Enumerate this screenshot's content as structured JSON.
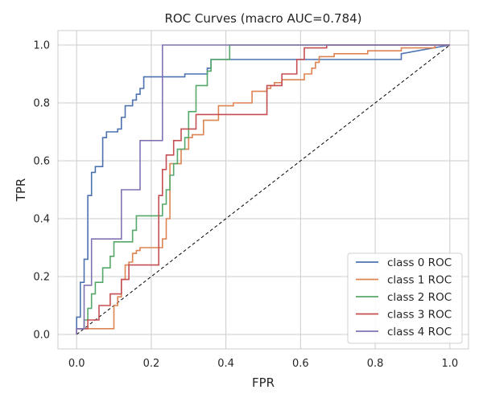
{
  "chart_data": {
    "type": "line",
    "title": "ROC Curves (macro AUC=0.784)",
    "xlabel": "FPR",
    "ylabel": "TPR",
    "xlim": [
      -0.05,
      1.05
    ],
    "ylim": [
      -0.05,
      1.05
    ],
    "xticks": [
      0.0,
      0.2,
      0.4,
      0.6,
      0.8,
      1.0
    ],
    "yticks": [
      0.0,
      0.2,
      0.4,
      0.6,
      0.8,
      1.0
    ],
    "xtick_labels": [
      "0.0",
      "0.2",
      "0.4",
      "0.6",
      "0.8",
      "1.0"
    ],
    "ytick_labels": [
      "0.0",
      "0.2",
      "0.4",
      "0.6",
      "0.8",
      "1.0"
    ],
    "grid": true,
    "legend_position": "bottom-right",
    "diagonal": {
      "x": [
        0,
        1
      ],
      "y": [
        0,
        1
      ],
      "color": "#000000",
      "style": "dashed"
    },
    "series": [
      {
        "name": "class 0 ROC",
        "color": "#4C72B0",
        "x": [
          0.0,
          0.0,
          0.01,
          0.01,
          0.02,
          0.02,
          0.03,
          0.03,
          0.04,
          0.04,
          0.05,
          0.05,
          0.07,
          0.07,
          0.08,
          0.08,
          0.11,
          0.11,
          0.12,
          0.12,
          0.13,
          0.13,
          0.15,
          0.15,
          0.16,
          0.16,
          0.17,
          0.17,
          0.18,
          0.18,
          0.29,
          0.29,
          0.35,
          0.35,
          0.36,
          0.36,
          0.87,
          0.87,
          1.0
        ],
        "y": [
          0.0,
          0.06,
          0.06,
          0.18,
          0.18,
          0.26,
          0.26,
          0.48,
          0.48,
          0.56,
          0.56,
          0.58,
          0.58,
          0.68,
          0.68,
          0.7,
          0.7,
          0.71,
          0.71,
          0.75,
          0.75,
          0.79,
          0.79,
          0.81,
          0.81,
          0.83,
          0.83,
          0.85,
          0.85,
          0.89,
          0.89,
          0.9,
          0.9,
          0.92,
          0.92,
          0.95,
          0.95,
          0.97,
          1.0
        ]
      },
      {
        "name": "class 1 ROC",
        "color": "#DD8452",
        "x": [
          0.0,
          0.0,
          0.1,
          0.1,
          0.11,
          0.11,
          0.12,
          0.12,
          0.13,
          0.13,
          0.14,
          0.14,
          0.15,
          0.15,
          0.16,
          0.16,
          0.17,
          0.17,
          0.23,
          0.23,
          0.24,
          0.24,
          0.25,
          0.25,
          0.28,
          0.28,
          0.3,
          0.3,
          0.31,
          0.31,
          0.34,
          0.34,
          0.38,
          0.38,
          0.42,
          0.42,
          0.47,
          0.47,
          0.51,
          0.51,
          0.52,
          0.52,
          0.53,
          0.53,
          0.55,
          0.55,
          0.61,
          0.61,
          0.63,
          0.63,
          0.64,
          0.64,
          0.65,
          0.65,
          0.69,
          0.69,
          0.78,
          0.78,
          0.87,
          0.87,
          0.96,
          0.96,
          1.0
        ],
        "y": [
          0.0,
          0.02,
          0.02,
          0.1,
          0.1,
          0.13,
          0.13,
          0.19,
          0.19,
          0.24,
          0.24,
          0.25,
          0.25,
          0.28,
          0.28,
          0.29,
          0.29,
          0.3,
          0.3,
          0.33,
          0.33,
          0.4,
          0.4,
          0.59,
          0.59,
          0.64,
          0.64,
          0.68,
          0.68,
          0.69,
          0.69,
          0.74,
          0.74,
          0.79,
          0.79,
          0.8,
          0.8,
          0.84,
          0.84,
          0.85,
          0.85,
          0.86,
          0.86,
          0.87,
          0.87,
          0.88,
          0.88,
          0.9,
          0.9,
          0.92,
          0.92,
          0.94,
          0.94,
          0.96,
          0.96,
          0.97,
          0.97,
          0.98,
          0.98,
          0.99,
          0.99,
          1.0,
          1.0
        ]
      },
      {
        "name": "class 2 ROC",
        "color": "#55A868",
        "x": [
          0.0,
          0.0,
          0.02,
          0.02,
          0.03,
          0.03,
          0.04,
          0.04,
          0.05,
          0.05,
          0.07,
          0.07,
          0.09,
          0.09,
          0.1,
          0.1,
          0.15,
          0.15,
          0.16,
          0.16,
          0.23,
          0.23,
          0.24,
          0.24,
          0.25,
          0.25,
          0.26,
          0.26,
          0.27,
          0.27,
          0.29,
          0.29,
          0.3,
          0.3,
          0.32,
          0.32,
          0.35,
          0.35,
          0.36,
          0.36,
          0.41,
          0.41,
          1.0
        ],
        "y": [
          0.0,
          0.02,
          0.02,
          0.05,
          0.05,
          0.09,
          0.09,
          0.14,
          0.14,
          0.18,
          0.18,
          0.23,
          0.23,
          0.27,
          0.27,
          0.32,
          0.32,
          0.36,
          0.36,
          0.41,
          0.41,
          0.45,
          0.45,
          0.5,
          0.5,
          0.55,
          0.55,
          0.59,
          0.59,
          0.64,
          0.64,
          0.68,
          0.68,
          0.77,
          0.77,
          0.86,
          0.86,
          0.91,
          0.91,
          0.95,
          0.95,
          1.0,
          1.0
        ]
      },
      {
        "name": "class 3 ROC",
        "color": "#C44E52",
        "x": [
          0.0,
          0.0,
          0.03,
          0.03,
          0.06,
          0.06,
          0.09,
          0.09,
          0.12,
          0.12,
          0.14,
          0.14,
          0.22,
          0.22,
          0.23,
          0.23,
          0.24,
          0.24,
          0.26,
          0.26,
          0.28,
          0.28,
          0.32,
          0.32,
          0.51,
          0.51,
          0.55,
          0.55,
          0.59,
          0.59,
          0.61,
          0.61,
          0.67,
          0.67,
          1.0
        ],
        "y": [
          0.0,
          0.02,
          0.02,
          0.05,
          0.05,
          0.1,
          0.1,
          0.14,
          0.14,
          0.19,
          0.19,
          0.24,
          0.24,
          0.48,
          0.48,
          0.57,
          0.57,
          0.62,
          0.62,
          0.67,
          0.67,
          0.71,
          0.71,
          0.76,
          0.76,
          0.86,
          0.86,
          0.9,
          0.9,
          0.95,
          0.95,
          0.99,
          0.99,
          1.0,
          1.0
        ]
      },
      {
        "name": "class 4 ROC",
        "color": "#8172B3",
        "x": [
          0.0,
          0.0,
          0.02,
          0.02,
          0.04,
          0.04,
          0.12,
          0.12,
          0.17,
          0.17,
          0.23,
          0.23,
          1.0
        ],
        "y": [
          0.0,
          0.02,
          0.02,
          0.17,
          0.17,
          0.33,
          0.33,
          0.5,
          0.5,
          0.67,
          0.67,
          1.0,
          1.0
        ]
      }
    ]
  }
}
